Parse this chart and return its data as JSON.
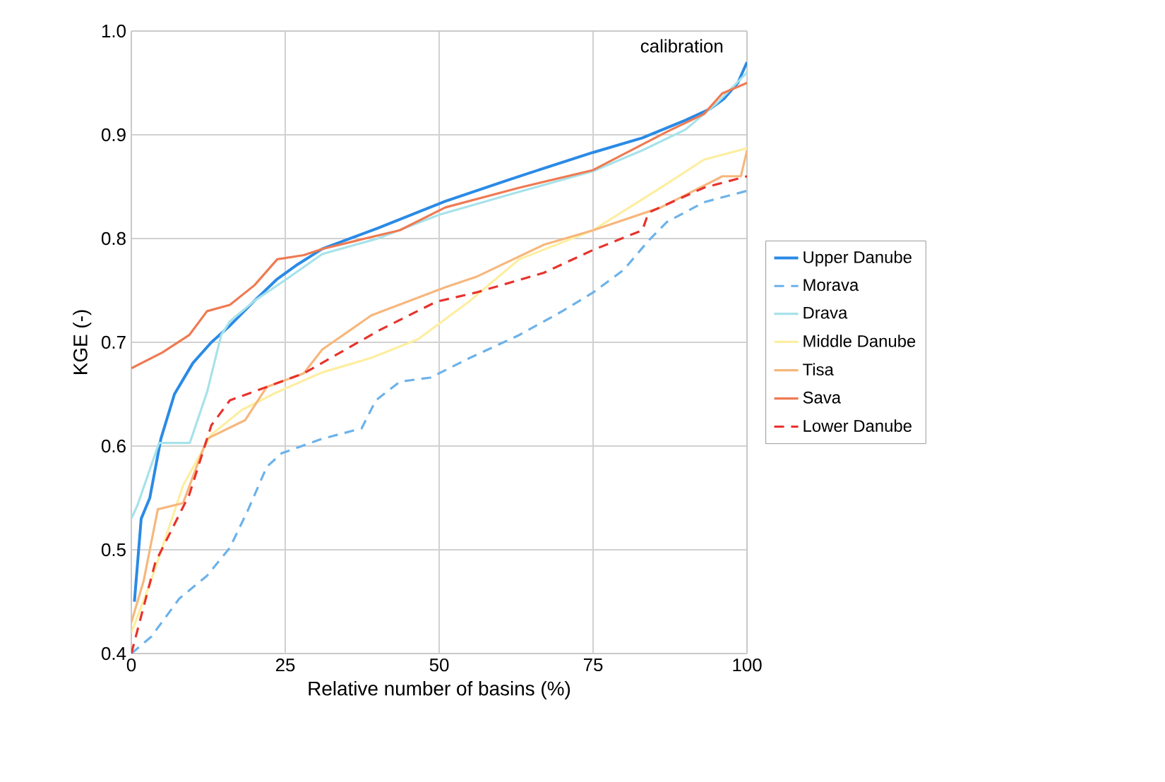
{
  "chart_data": {
    "type": "line",
    "xlabel": "Relative number of basins (%)",
    "ylabel": "KGE (-)",
    "annotations": [
      "calibration"
    ],
    "xlim": [
      0,
      100
    ],
    "ylim": [
      0.4,
      1.0
    ],
    "xticks": [
      0,
      25,
      50,
      75,
      100
    ],
    "yticks": [
      0.4,
      0.5,
      0.6,
      0.7,
      0.8,
      0.9,
      {
        "value": 1.0,
        "label": "1.0"
      }
    ],
    "grid": true,
    "legend": "right",
    "marker": "none",
    "series": [
      {
        "name": "Upper Danube",
        "color": "#2a8ae6",
        "line_style": "solid",
        "x": [
          0.5,
          1.6,
          3,
          4.8,
          7,
          10,
          13,
          16,
          20,
          23.7,
          27,
          31,
          40,
          51,
          63,
          75,
          83,
          90,
          94,
          96.3,
          98.5,
          100
        ],
        "values": [
          0.45,
          0.53,
          0.55,
          0.607,
          0.65,
          0.68,
          0.7,
          0.716,
          0.74,
          0.761,
          0.775,
          0.79,
          0.81,
          0.836,
          0.86,
          0.883,
          0.897,
          0.914,
          0.925,
          0.935,
          0.95,
          0.97
        ]
      },
      {
        "name": "Morava",
        "color": "#6cb2ea",
        "line_style": "dashed",
        "x": [
          0,
          3.2,
          7.8,
          12.3,
          16,
          19,
          22,
          24.4,
          31,
          37.4,
          39.7,
          43.6,
          48.6,
          55,
          63,
          70,
          75,
          80,
          84,
          87,
          93,
          100
        ],
        "values": [
          0.4,
          0.416,
          0.453,
          0.475,
          0.502,
          0.539,
          0.58,
          0.593,
          0.607,
          0.617,
          0.644,
          0.662,
          0.666,
          0.685,
          0.707,
          0.73,
          0.748,
          0.77,
          0.798,
          0.816,
          0.835,
          0.846
        ]
      },
      {
        "name": "Drava",
        "color": "#a6e2ea",
        "line_style": "solid",
        "x": [
          0,
          1,
          4.5,
          9.5,
          12.3,
          14.6,
          16,
          20,
          25,
          31,
          40,
          50,
          63,
          75,
          83,
          90,
          95,
          100
        ],
        "values": [
          0.53,
          0.543,
          0.603,
          0.603,
          0.652,
          0.707,
          0.72,
          0.74,
          0.76,
          0.785,
          0.8,
          0.823,
          0.845,
          0.865,
          0.885,
          0.905,
          0.93,
          0.96
        ]
      },
      {
        "name": "Middle Danube",
        "color": "#fdeea0",
        "line_style": "solid",
        "x": [
          0,
          3.2,
          8.4,
          13,
          18,
          23.7,
          31,
          39,
          46.6,
          55,
          63,
          75,
          86,
          93,
          100
        ],
        "values": [
          0.42,
          0.47,
          0.562,
          0.611,
          0.635,
          0.652,
          0.671,
          0.685,
          0.703,
          0.74,
          0.78,
          0.808,
          0.849,
          0.876,
          0.887
        ]
      },
      {
        "name": "Tisa",
        "color": "#f6b77c",
        "line_style": "solid",
        "x": [
          0,
          2,
          4.3,
          8.4,
          12.3,
          18.5,
          22,
          28,
          31,
          39,
          51,
          56,
          67,
          75,
          86,
          96,
          99,
          100
        ],
        "values": [
          0.43,
          0.47,
          0.539,
          0.545,
          0.607,
          0.625,
          0.657,
          0.67,
          0.693,
          0.726,
          0.753,
          0.763,
          0.794,
          0.808,
          0.83,
          0.86,
          0.86,
          0.885
        ]
      },
      {
        "name": "Sava",
        "color": "#ef7a52",
        "line_style": "solid",
        "x": [
          0,
          5,
          9.4,
          12.3,
          16,
          20,
          23.7,
          28,
          31,
          43.6,
          51,
          63,
          75,
          87,
          93,
          96,
          100
        ],
        "values": [
          0.675,
          0.69,
          0.707,
          0.73,
          0.736,
          0.755,
          0.78,
          0.784,
          0.79,
          0.808,
          0.83,
          0.849,
          0.866,
          0.903,
          0.92,
          0.94,
          0.95
        ]
      },
      {
        "name": "Lower Danube",
        "color": "#e8322c",
        "line_style": "dashed",
        "x": [
          0,
          3.9,
          9.4,
          13,
          16,
          22,
          28,
          33.6,
          40.4,
          49.5,
          56,
          67,
          75,
          83,
          84,
          93,
          100
        ],
        "values": [
          0.4,
          0.488,
          0.553,
          0.62,
          0.644,
          0.657,
          0.67,
          0.689,
          0.712,
          0.739,
          0.748,
          0.767,
          0.789,
          0.808,
          0.825,
          0.849,
          0.86
        ]
      }
    ]
  }
}
